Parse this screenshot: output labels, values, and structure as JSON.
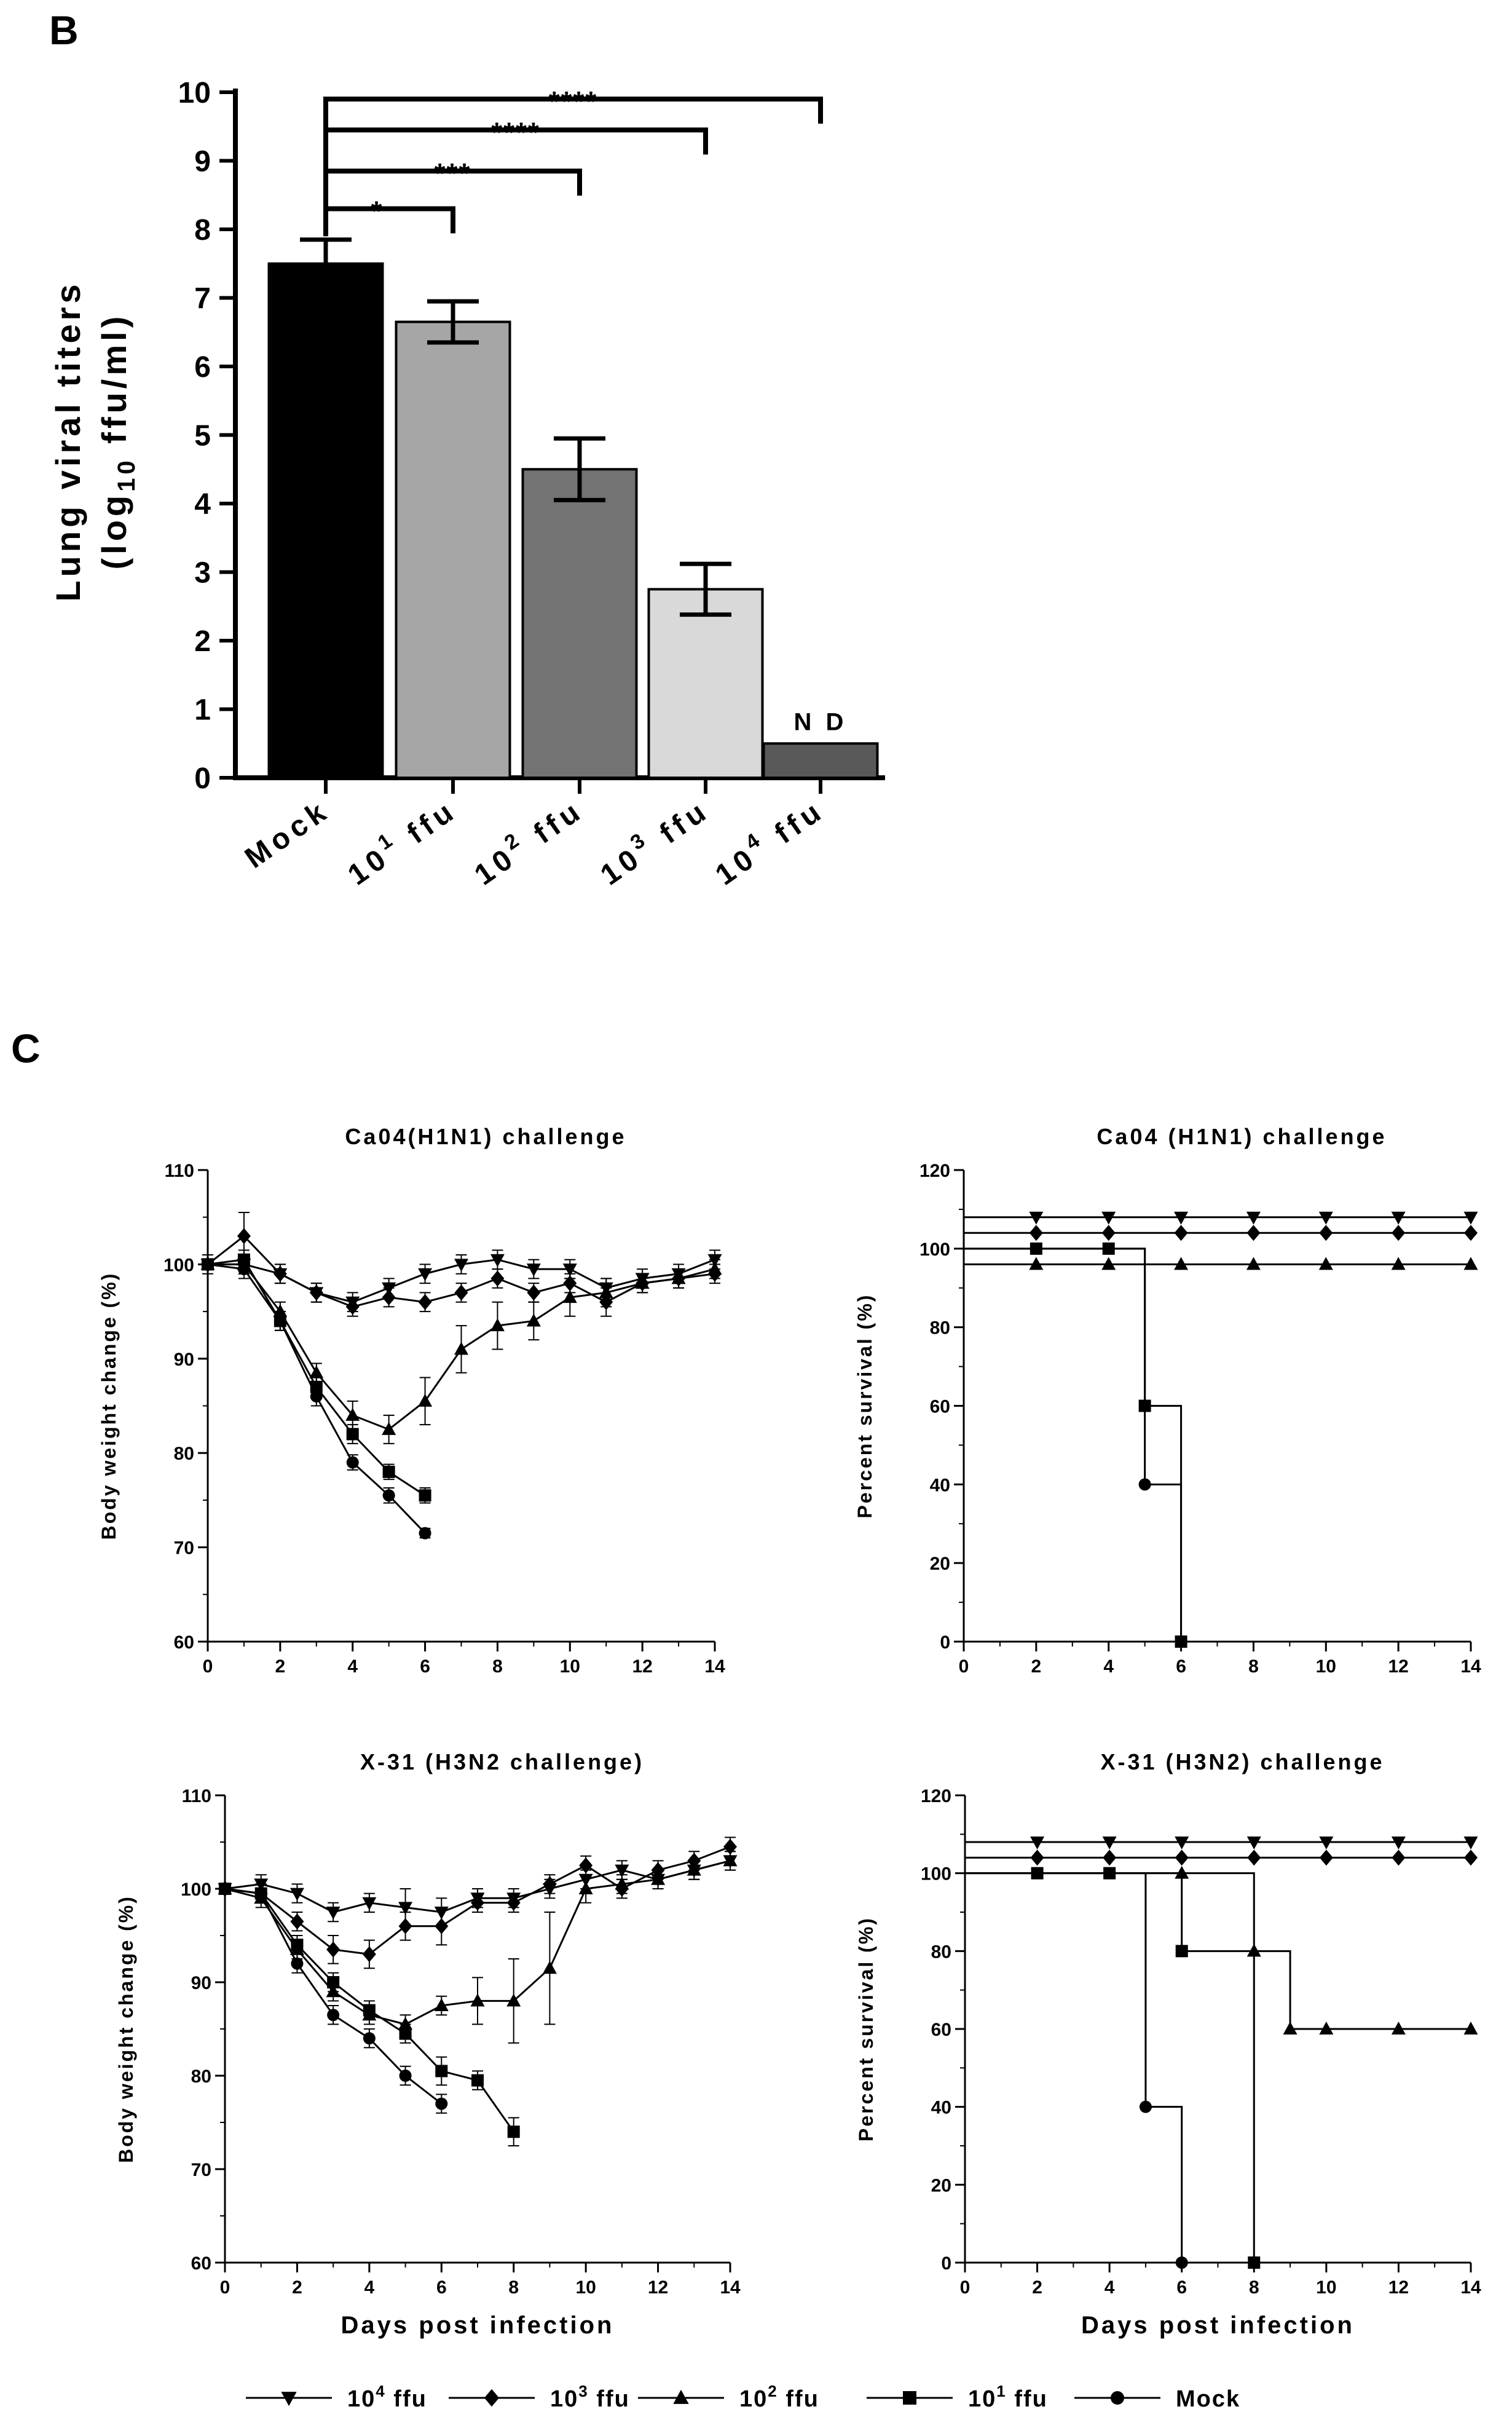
{
  "panels": {
    "b_letter": "B",
    "c_letter": "C"
  },
  "chart_data": [
    {
      "type": "bar",
      "panel": "B",
      "ylabel_line1": "Lung viral titers",
      "ylabel_line2": "(log",
      "ylabel_sub": "10",
      "ylabel_tail": " ffu/ml)",
      "ylim": [
        0,
        10
      ],
      "yticks": [
        "0",
        "1",
        "2",
        "3",
        "4",
        "5",
        "6",
        "7",
        "8",
        "9",
        "10"
      ],
      "categories": [
        {
          "base": "Mock",
          "sup": ""
        },
        {
          "base": "10",
          "sup": "1",
          "unit": "ffu"
        },
        {
          "base": "10",
          "sup": "2",
          "unit": "ffu"
        },
        {
          "base": "10",
          "sup": "3",
          "unit": "ffu"
        },
        {
          "base": "10",
          "sup": "4",
          "unit": "ffu"
        }
      ],
      "values": [
        7.5,
        6.65,
        4.5,
        2.75,
        0.5
      ],
      "errors": [
        0.35,
        0.3,
        0.45,
        0.37,
        0
      ],
      "colors": [
        "#000000",
        "#a6a6a6",
        "#737373",
        "#d9d9d9",
        "#595959"
      ],
      "nd_label": "N D",
      "significance": [
        {
          "from": 0,
          "to": 1,
          "label": "*"
        },
        {
          "from": 0,
          "to": 2,
          "label": "***"
        },
        {
          "from": 0,
          "to": 3,
          "label": "****"
        },
        {
          "from": 0,
          "to": 4,
          "label": "****"
        }
      ]
    },
    {
      "type": "line",
      "panel": "C",
      "title": "Ca04(H1N1) challenge",
      "ylabel": "Body weight change  (%)",
      "xlabel": "",
      "xlim": [
        0,
        14
      ],
      "ylim": [
        60,
        110
      ],
      "xticks": [
        "0",
        "2",
        "4",
        "6",
        "8",
        "10",
        "12",
        "14"
      ],
      "yticks": [
        "60",
        "70",
        "80",
        "90",
        "100",
        "110"
      ],
      "series": [
        {
          "name": "10^4 ffu",
          "marker": "tri-down",
          "x": [
            0,
            1,
            2,
            3,
            4,
            5,
            6,
            7,
            8,
            9,
            10,
            11,
            12,
            13,
            14
          ],
          "y": [
            100,
            100,
            99,
            97,
            96,
            97.5,
            99,
            100,
            100.5,
            99.5,
            99.5,
            97.5,
            98.5,
            99,
            100.5
          ],
          "err": [
            1,
            1,
            1,
            1,
            1,
            1,
            1,
            1,
            1,
            1,
            1,
            1,
            1,
            1,
            1
          ]
        },
        {
          "name": "10^3 ffu",
          "marker": "diamond",
          "x": [
            0,
            1,
            2,
            3,
            4,
            5,
            6,
            7,
            8,
            9,
            10,
            11,
            12,
            13,
            14
          ],
          "y": [
            100,
            103,
            99,
            97,
            95.5,
            96.5,
            96,
            97,
            98.5,
            97,
            98,
            96,
            98,
            98.5,
            99
          ],
          "err": [
            0.5,
            2.5,
            1,
            1,
            1,
            1,
            1,
            1,
            1,
            1,
            1,
            1.5,
            1,
            1,
            1
          ]
        },
        {
          "name": "10^2 ffu",
          "marker": "tri-up",
          "x": [
            0,
            1,
            2,
            3,
            4,
            5,
            6,
            7,
            8,
            9,
            10,
            11,
            12,
            13,
            14
          ],
          "y": [
            100,
            100,
            95,
            88.5,
            84,
            82.5,
            85.5,
            91,
            93.5,
            94,
            96.5,
            97,
            98,
            98.5,
            99.5
          ],
          "err": [
            0.5,
            1,
            1,
            1,
            1.5,
            1.5,
            2.5,
            2.5,
            2.5,
            2,
            2,
            1.5,
            1,
            1,
            1
          ]
        },
        {
          "name": "10^1 ffu",
          "marker": "square",
          "x": [
            0,
            1,
            2,
            3,
            4,
            5,
            6
          ],
          "y": [
            100,
            100.5,
            94,
            87,
            82,
            78,
            75.5
          ],
          "err": [
            0.5,
            1,
            1,
            1,
            1,
            0.8,
            0.8
          ]
        },
        {
          "name": "Mock",
          "marker": "circle",
          "x": [
            0,
            1,
            2,
            3,
            4,
            5,
            6
          ],
          "y": [
            100,
            99.5,
            94,
            86,
            79,
            75.5,
            71.5
          ],
          "err": [
            0.5,
            1,
            1,
            1,
            0.8,
            0.8,
            0.5
          ]
        }
      ]
    },
    {
      "type": "line",
      "panel": "C",
      "title": "Ca04 (H1N1) challenge",
      "ylabel": "Percent survival (%)",
      "xlabel": "",
      "xlim": [
        0,
        14
      ],
      "ylim": [
        0,
        120
      ],
      "xticks": [
        "0",
        "2",
        "4",
        "6",
        "8",
        "10",
        "12",
        "14"
      ],
      "yticks": [
        "0",
        "20",
        "40",
        "60",
        "80",
        "100",
        "120"
      ],
      "series": [
        {
          "name": "10^4 ffu",
          "marker": "tri-down",
          "x": [
            0,
            2,
            4,
            6,
            8,
            10,
            12,
            14
          ],
          "y": [
            108,
            108,
            108,
            108,
            108,
            108,
            108,
            108
          ],
          "step": true,
          "markers_at": [
            2,
            4,
            6,
            8,
            10,
            12,
            14
          ]
        },
        {
          "name": "10^3 ffu",
          "marker": "diamond",
          "x": [
            0,
            2,
            4,
            6,
            8,
            10,
            12,
            14
          ],
          "y": [
            104,
            104,
            104,
            104,
            104,
            104,
            104,
            104
          ],
          "step": true,
          "markers_at": [
            2,
            4,
            6,
            8,
            10,
            12,
            14
          ]
        },
        {
          "name": "10^2 ffu",
          "marker": "tri-up",
          "x": [
            0,
            2,
            4,
            6,
            8,
            10,
            12,
            14
          ],
          "y": [
            96,
            96,
            96,
            96,
            96,
            96,
            96,
            96
          ],
          "step": true,
          "markers_at": [
            2,
            4,
            6,
            8,
            10,
            12,
            14
          ]
        },
        {
          "name": "10^1 ffu",
          "marker": "square",
          "x": [
            0,
            2,
            4,
            5,
            6
          ],
          "y": [
            100,
            100,
            100,
            60,
            0
          ],
          "step": true,
          "markers_at": [
            2,
            4,
            5,
            6
          ]
        },
        {
          "name": "Mock",
          "marker": "circle",
          "x": [
            0,
            5,
            6
          ],
          "y": [
            100,
            40,
            0
          ],
          "step": true,
          "markers_at": [
            5
          ]
        }
      ]
    },
    {
      "type": "line",
      "panel": "C",
      "title": "X-31 (H3N2 challenge)",
      "ylabel": "Body weight change  (%)",
      "xlabel": "Days post infection",
      "xlim": [
        0,
        14
      ],
      "ylim": [
        60,
        110
      ],
      "xticks": [
        "0",
        "2",
        "4",
        "6",
        "8",
        "10",
        "12",
        "14"
      ],
      "yticks": [
        "60",
        "70",
        "80",
        "90",
        "100",
        "110"
      ],
      "series": [
        {
          "name": "10^4 ffu",
          "marker": "tri-down",
          "x": [
            0,
            1,
            2,
            3,
            4,
            5,
            6,
            7,
            8,
            9,
            10,
            11,
            12,
            13,
            14
          ],
          "y": [
            100,
            100.5,
            99.5,
            97.5,
            98.5,
            98,
            97.5,
            99,
            99,
            100,
            101,
            102,
            101,
            102,
            103
          ],
          "err": [
            0.5,
            1,
            1,
            1,
            1,
            2,
            1.5,
            1,
            1,
            1,
            1,
            1,
            1,
            1,
            1
          ]
        },
        {
          "name": "10^3 ffu",
          "marker": "diamond",
          "x": [
            0,
            1,
            2,
            3,
            4,
            5,
            6,
            7,
            8,
            9,
            10,
            11,
            12,
            13,
            14
          ],
          "y": [
            100,
            99.5,
            96.5,
            93.5,
            93,
            96,
            96,
            98.5,
            98.5,
            100.5,
            102.5,
            100,
            102,
            103,
            104.5
          ],
          "err": [
            0.5,
            1,
            1,
            1.5,
            1.5,
            1.5,
            2,
            1,
            1,
            1,
            1,
            1,
            1,
            1,
            1
          ]
        },
        {
          "name": "10^2 ffu",
          "marker": "tri-up",
          "x": [
            0,
            1,
            2,
            3,
            4,
            5,
            6,
            7,
            8,
            9,
            10,
            11,
            12,
            13,
            14
          ],
          "y": [
            100,
            99,
            93.5,
            89,
            86.5,
            85.5,
            87.5,
            88,
            88,
            91.5,
            100,
            100.5,
            101,
            102,
            103
          ],
          "err": [
            0.5,
            1,
            1,
            1,
            1,
            1,
            1,
            2.5,
            4.5,
            6,
            1.5,
            1,
            1,
            1,
            1
          ]
        },
        {
          "name": "10^1 ffu",
          "marker": "square",
          "x": [
            0,
            1,
            2,
            3,
            4,
            5,
            6,
            7,
            8
          ],
          "y": [
            100,
            99.5,
            94,
            90,
            87,
            84.5,
            80.5,
            79.5,
            74
          ],
          "err": [
            0.5,
            1,
            1,
            1,
            1,
            1,
            1.5,
            1,
            1.5
          ]
        },
        {
          "name": "Mock",
          "marker": "circle",
          "x": [
            0,
            1,
            2,
            3,
            4,
            5,
            6
          ],
          "y": [
            100,
            99.5,
            92,
            86.5,
            84,
            80,
            77
          ],
          "err": [
            0.5,
            1,
            1,
            1,
            1,
            1,
            1
          ]
        }
      ]
    },
    {
      "type": "line",
      "panel": "C",
      "title": "X-31 (H3N2) challenge",
      "ylabel": "Percent survival (%)",
      "xlabel": "Days post infection",
      "xlim": [
        0,
        14
      ],
      "ylim": [
        0,
        120
      ],
      "xticks": [
        "0",
        "2",
        "4",
        "6",
        "8",
        "10",
        "12",
        "14"
      ],
      "yticks": [
        "0",
        "20",
        "40",
        "60",
        "80",
        "100",
        "120"
      ],
      "series": [
        {
          "name": "10^4 ffu",
          "marker": "tri-down",
          "x": [
            0,
            2,
            4,
            6,
            8,
            10,
            12,
            14
          ],
          "y": [
            108,
            108,
            108,
            108,
            108,
            108,
            108,
            108
          ],
          "step": true,
          "markers_at": [
            2,
            4,
            6,
            8,
            10,
            12,
            14
          ]
        },
        {
          "name": "10^3 ffu",
          "marker": "diamond",
          "x": [
            0,
            2,
            4,
            6,
            8,
            10,
            12,
            14
          ],
          "y": [
            104,
            104,
            104,
            104,
            104,
            104,
            104,
            104
          ],
          "step": true,
          "markers_at": [
            2,
            4,
            6,
            8,
            10,
            12,
            14
          ]
        },
        {
          "name": "10^2 ffu",
          "marker": "tri-up",
          "x": [
            0,
            6,
            8,
            9,
            14
          ],
          "y": [
            100,
            100,
            80,
            60,
            60
          ],
          "step": true,
          "markers_at": [
            6,
            8,
            9,
            10,
            12,
            14
          ]
        },
        {
          "name": "10^1 ffu",
          "marker": "square",
          "x": [
            0,
            2,
            4,
            6,
            8
          ],
          "y": [
            100,
            100,
            100,
            80,
            0
          ],
          "step": true,
          "markers_at": [
            2,
            4,
            6,
            8
          ]
        },
        {
          "name": "Mock",
          "marker": "circle",
          "x": [
            0,
            5,
            6
          ],
          "y": [
            100,
            40,
            0
          ],
          "step": true,
          "markers_at": [
            5,
            6
          ]
        }
      ]
    }
  ],
  "legend": [
    {
      "base": "10",
      "sup": "4",
      "unit": " ffu",
      "marker": "tri-down"
    },
    {
      "base": "10",
      "sup": "3",
      "unit": " ffu",
      "marker": "diamond"
    },
    {
      "base": "10",
      "sup": "2",
      "unit": " ffu",
      "marker": "tri-up"
    },
    {
      "base": "10",
      "sup": "1",
      "unit": " ffu",
      "marker": "square"
    },
    {
      "base": "Mock",
      "sup": "",
      "unit": "",
      "marker": "circle"
    }
  ]
}
